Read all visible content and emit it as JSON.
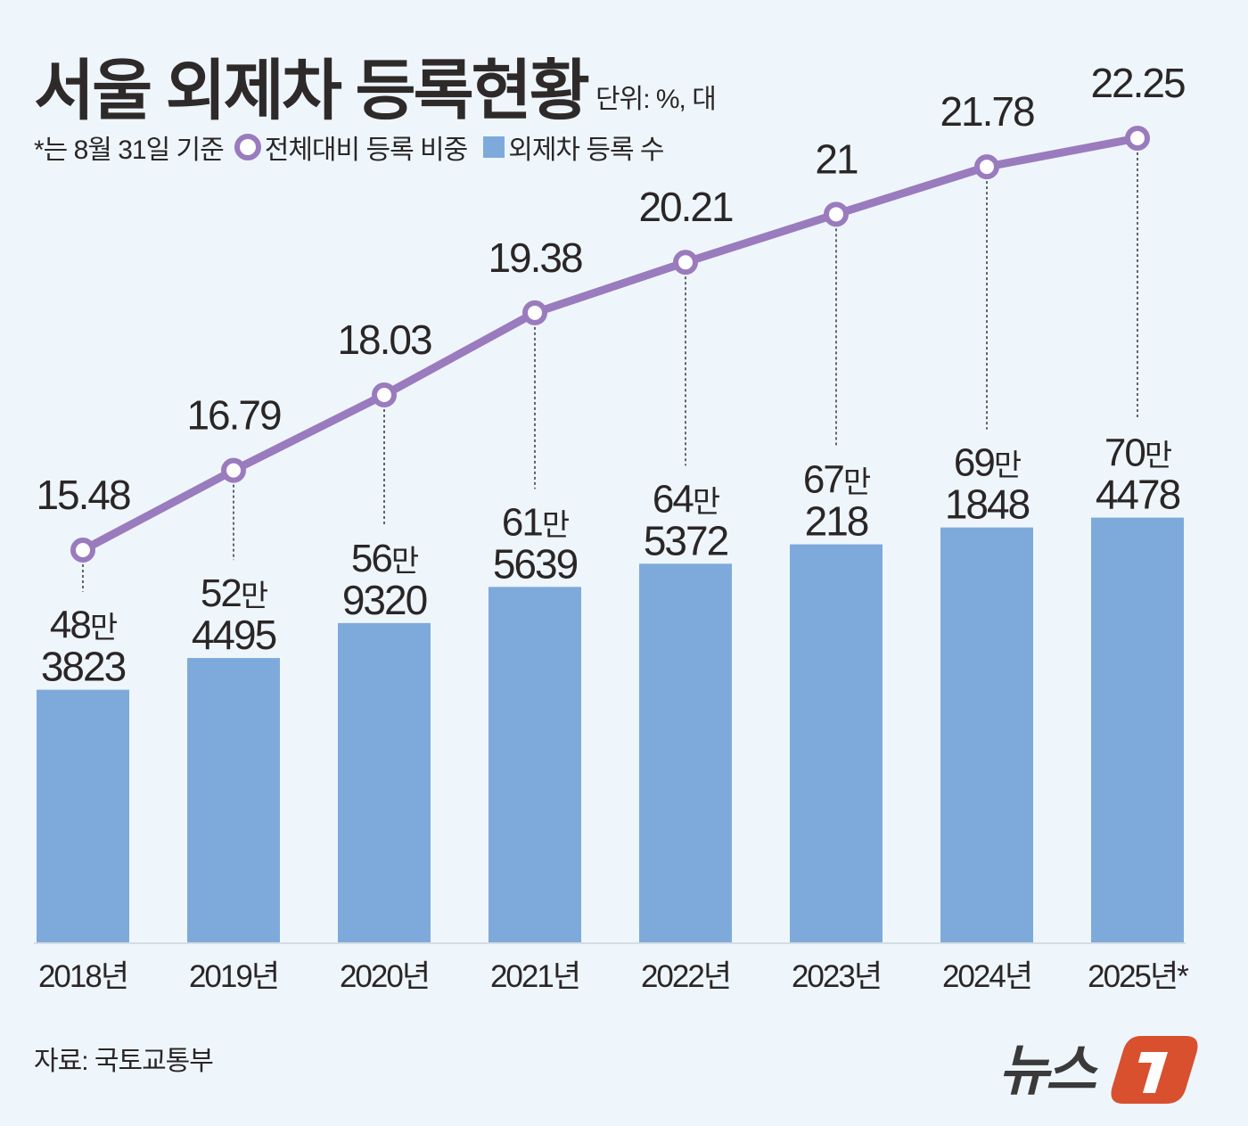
{
  "header": {
    "title": "서울 외제차 등록현황",
    "unit": "단위: %, 대",
    "note": "*는 8월 31일 기준",
    "legend_line": "전체대비 등록 비중",
    "legend_bar": "외제차 등록 수"
  },
  "footer": {
    "source": "자료: 국토교통부",
    "logo_text": "뉴스1"
  },
  "colors": {
    "background": "#eef6fc",
    "bar": "#7eaadb",
    "line": "#9a7bbd",
    "logo_red": "#d9502f"
  },
  "chart_data": {
    "type": "bar+line",
    "categories": [
      "2018년",
      "2019년",
      "2020년",
      "2021년",
      "2022년",
      "2023년",
      "2024년",
      "2025년*"
    ],
    "series": [
      {
        "name": "외제차 등록 수",
        "type": "bar",
        "values": [
          483823,
          524495,
          569320,
          615639,
          645372,
          670218,
          691848,
          704478
        ],
        "labels": [
          [
            "48만",
            "3823"
          ],
          [
            "52만",
            "4495"
          ],
          [
            "56만",
            "9320"
          ],
          [
            "61만",
            "5639"
          ],
          [
            "64만",
            "5372"
          ],
          [
            "67만",
            "218"
          ],
          [
            "69만",
            "1848"
          ],
          [
            "70만",
            "4478"
          ]
        ]
      },
      {
        "name": "전체대비 등록 비중",
        "type": "line",
        "values": [
          15.48,
          16.79,
          18.03,
          19.38,
          20.21,
          21,
          21.78,
          22.25
        ],
        "labels": [
          "15.48",
          "16.79",
          "18.03",
          "19.38",
          "20.21",
          "21",
          "21.78",
          "22.25"
        ]
      }
    ],
    "bar_ylim": [
      160000,
      800000
    ],
    "line_ylim": [
      14,
      24
    ],
    "grid": false,
    "legend": "top-left"
  }
}
